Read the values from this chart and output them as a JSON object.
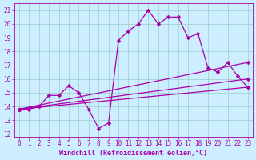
{
  "xlabel": "Windchill (Refroidissement éolien,°C)",
  "background_color": "#cceeff",
  "grid_color": "#99cccc",
  "line_color": "#aa00aa",
  "spine_color": "#aa00aa",
  "tick_color": "#aa00aa",
  "xlim": [
    -0.5,
    23.5
  ],
  "ylim": [
    11.8,
    21.5
  ],
  "xticks": [
    0,
    1,
    2,
    3,
    4,
    5,
    6,
    7,
    8,
    9,
    10,
    11,
    12,
    13,
    14,
    15,
    16,
    17,
    18,
    19,
    20,
    21,
    22,
    23
  ],
  "yticks": [
    12,
    13,
    14,
    15,
    16,
    17,
    18,
    19,
    20,
    21
  ],
  "line1_x": [
    0,
    1,
    2,
    3,
    4,
    5,
    6,
    7,
    8,
    9,
    10,
    11,
    12,
    13,
    14,
    15,
    16,
    17,
    18,
    19,
    20,
    21,
    22,
    23
  ],
  "line1_y": [
    13.8,
    13.8,
    14.0,
    14.8,
    14.8,
    15.5,
    15.0,
    13.8,
    12.4,
    12.8,
    18.8,
    19.5,
    20.0,
    21.0,
    20.0,
    20.5,
    20.5,
    19.0,
    19.3,
    16.8,
    16.5,
    17.2,
    16.2,
    15.4
  ],
  "line2_x": [
    0,
    23
  ],
  "line2_y": [
    13.8,
    17.2
  ],
  "line3_x": [
    0,
    23
  ],
  "line3_y": [
    13.8,
    16.0
  ],
  "line4_x": [
    0,
    23
  ],
  "line4_y": [
    13.8,
    15.4
  ],
  "marker_size": 2.5,
  "line_width": 0.9,
  "tick_fontsize": 5.5,
  "xlabel_fontsize": 6.0
}
